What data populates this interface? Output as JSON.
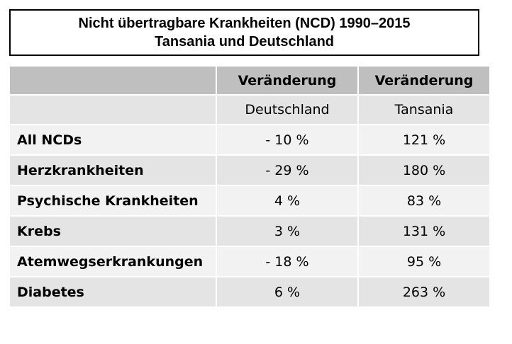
{
  "title": {
    "line1": "Nicht übertragbare Krankheiten (NCD) 1990–2015",
    "line2": "Tansania und Deutschland"
  },
  "colors": {
    "header_dark": "#bfbfbf",
    "row_dark": "#e4e4e4",
    "row_light": "#f2f2f2",
    "title_border": "#000000"
  },
  "chart_data": {
    "type": "table",
    "title": "Nicht übertragbare Krankheiten (NCD) 1990–2015 Tansania und Deutschland",
    "columns": [
      {
        "header": "",
        "subheader": ""
      },
      {
        "header": "Veränderung",
        "subheader": "Deutschland"
      },
      {
        "header": "Veränderung",
        "subheader": "Tansania"
      }
    ],
    "rows": [
      {
        "label": "All NCDs",
        "deutschland": "- 10 %",
        "tansania": "121 %"
      },
      {
        "label": "Herzkrankheiten",
        "deutschland": "- 29 %",
        "tansania": "180 %"
      },
      {
        "label": "Psychische Krankheiten",
        "deutschland": "4 %",
        "tansania": "83 %"
      },
      {
        "label": "Krebs",
        "deutschland": "3 %",
        "tansania": "131 %"
      },
      {
        "label": "Atemwegserkrankungen",
        "deutschland": "- 18 %",
        "tansania": "95 %"
      },
      {
        "label": "Diabetes",
        "deutschland": "6 %",
        "tansania": "263 %"
      }
    ]
  }
}
